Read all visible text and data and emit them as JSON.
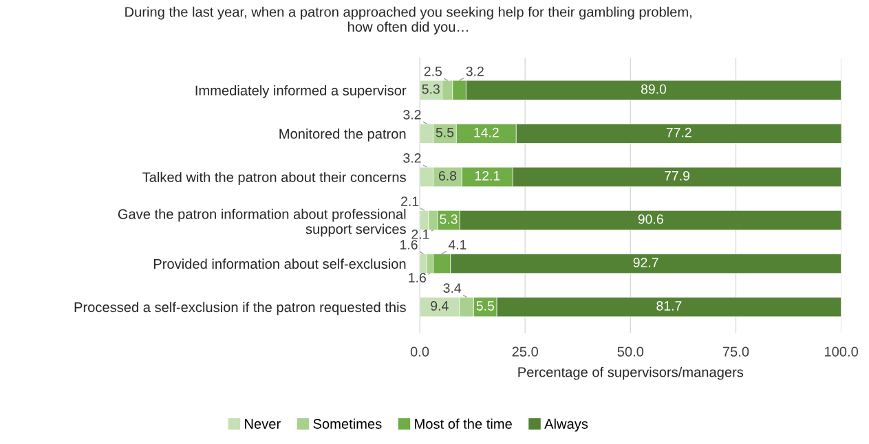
{
  "chart_data": {
    "type": "bar",
    "orientation": "horizontal",
    "stacked": true,
    "title": "During the last year, when a patron approached you seeking help for their gambling problem,\nhow often did you…",
    "xlabel": "Percentage of supervisors/managers",
    "categories": [
      "Immediately informed a supervisor",
      "Monitored the patron",
      "Talked with the patron about their concerns",
      "Gave the patron information about professional\nsupport services",
      "Provided information about self-exclusion",
      "Processed a self-exclusion if the patron requested this"
    ],
    "series": [
      {
        "name": "Never",
        "color": "#c5e0b4",
        "values": [
          5.3,
          3.2,
          3.2,
          2.1,
          1.6,
          9.4
        ],
        "value_labels": [
          "5.3",
          "3.2",
          "3.2",
          "2.1",
          "1.6",
          "9.4"
        ]
      },
      {
        "name": "Sometimes",
        "color": "#a9d18e",
        "values": [
          2.5,
          5.5,
          6.8,
          2.1,
          1.6,
          3.4
        ],
        "value_labels": [
          "2.5",
          "5.5",
          "6.8",
          "2.1",
          "1.6",
          "3.4"
        ]
      },
      {
        "name": "Most of the time",
        "color": "#70ad47",
        "values": [
          3.2,
          14.2,
          12.1,
          5.3,
          4.1,
          5.5
        ],
        "value_labels": [
          "3.2",
          "14.2",
          "12.1",
          "5.3",
          "4.1",
          "5.5"
        ]
      },
      {
        "name": "Always",
        "color": "#548235",
        "values": [
          89.0,
          77.2,
          77.9,
          90.6,
          92.7,
          81.7
        ],
        "value_labels": [
          "89.0",
          "77.2",
          "77.9",
          "90.6",
          "92.7",
          "81.7"
        ]
      }
    ],
    "xlim": [
      0,
      100
    ],
    "xticks": [
      {
        "value": 0,
        "label": "0.0"
      },
      {
        "value": 25,
        "label": "25.0"
      },
      {
        "value": 50,
        "label": "50.0"
      },
      {
        "value": 75,
        "label": "75.0"
      },
      {
        "value": 100,
        "label": "100.0"
      }
    ],
    "grid": "x",
    "legend": "bottom",
    "data_labels": true
  }
}
